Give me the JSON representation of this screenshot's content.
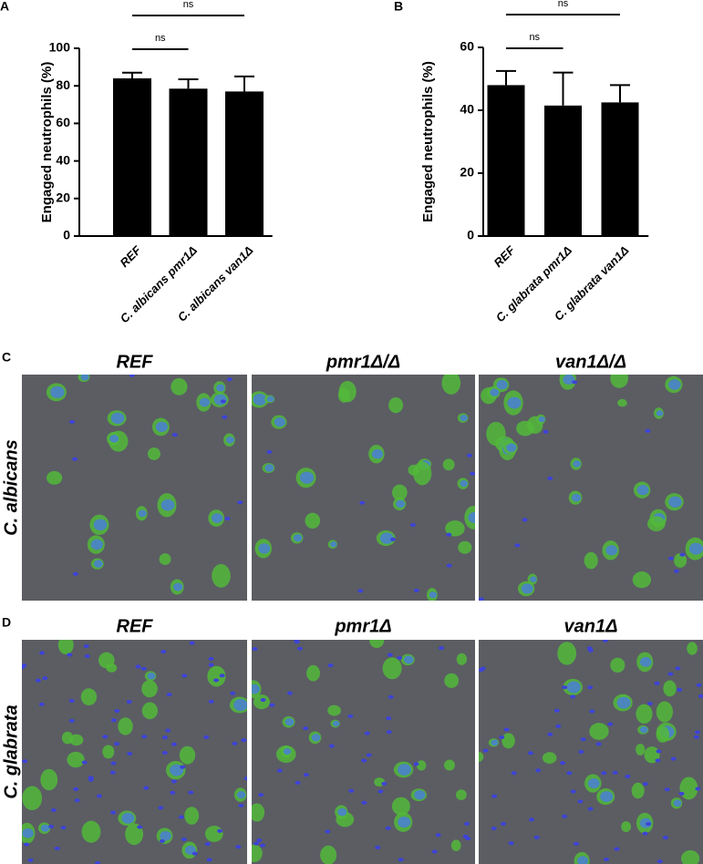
{
  "chart_data": [
    {
      "type": "bar",
      "panel": "A",
      "ylabel": "Engaged neutrophils (%)",
      "categories": [
        "REF",
        "C. albicans pmr1Δ",
        "C. albicans van1Δ"
      ],
      "values": [
        84,
        78.5,
        77
      ],
      "errors": [
        3,
        5,
        8
      ],
      "color": "#000000",
      "ylim": [
        0,
        100
      ],
      "yticks": [
        0,
        20,
        40,
        60,
        80,
        100
      ],
      "significance": [
        {
          "label": "ns",
          "from": 0,
          "to": 1
        },
        {
          "label": "ns",
          "from": 0,
          "to": 2
        }
      ]
    },
    {
      "type": "bar",
      "panel": "B",
      "ylabel": "Engaged neutrophils (%)",
      "categories": [
        "REF",
        "C. glabrata pmr1Δ",
        "C. glabrata van1Δ"
      ],
      "values": [
        48,
        41.5,
        42.5
      ],
      "errors": [
        4.5,
        10.5,
        5.5
      ],
      "color": "#000000",
      "ylim": [
        0,
        60
      ],
      "yticks": [
        0,
        20,
        40,
        60
      ],
      "significance": [
        {
          "label": "ns",
          "from": 0,
          "to": 1
        },
        {
          "label": "ns",
          "from": 0,
          "to": 2
        }
      ]
    }
  ],
  "micrographs": [
    {
      "panel": "C",
      "row_label": "C. albicans",
      "columns": [
        "REF",
        "pmr1Δ/Δ",
        "van1Δ/Δ"
      ]
    },
    {
      "panel": "D",
      "row_label": "C. glabrata",
      "columns": [
        "REF",
        "pmr1Δ",
        "van1Δ"
      ]
    }
  ]
}
